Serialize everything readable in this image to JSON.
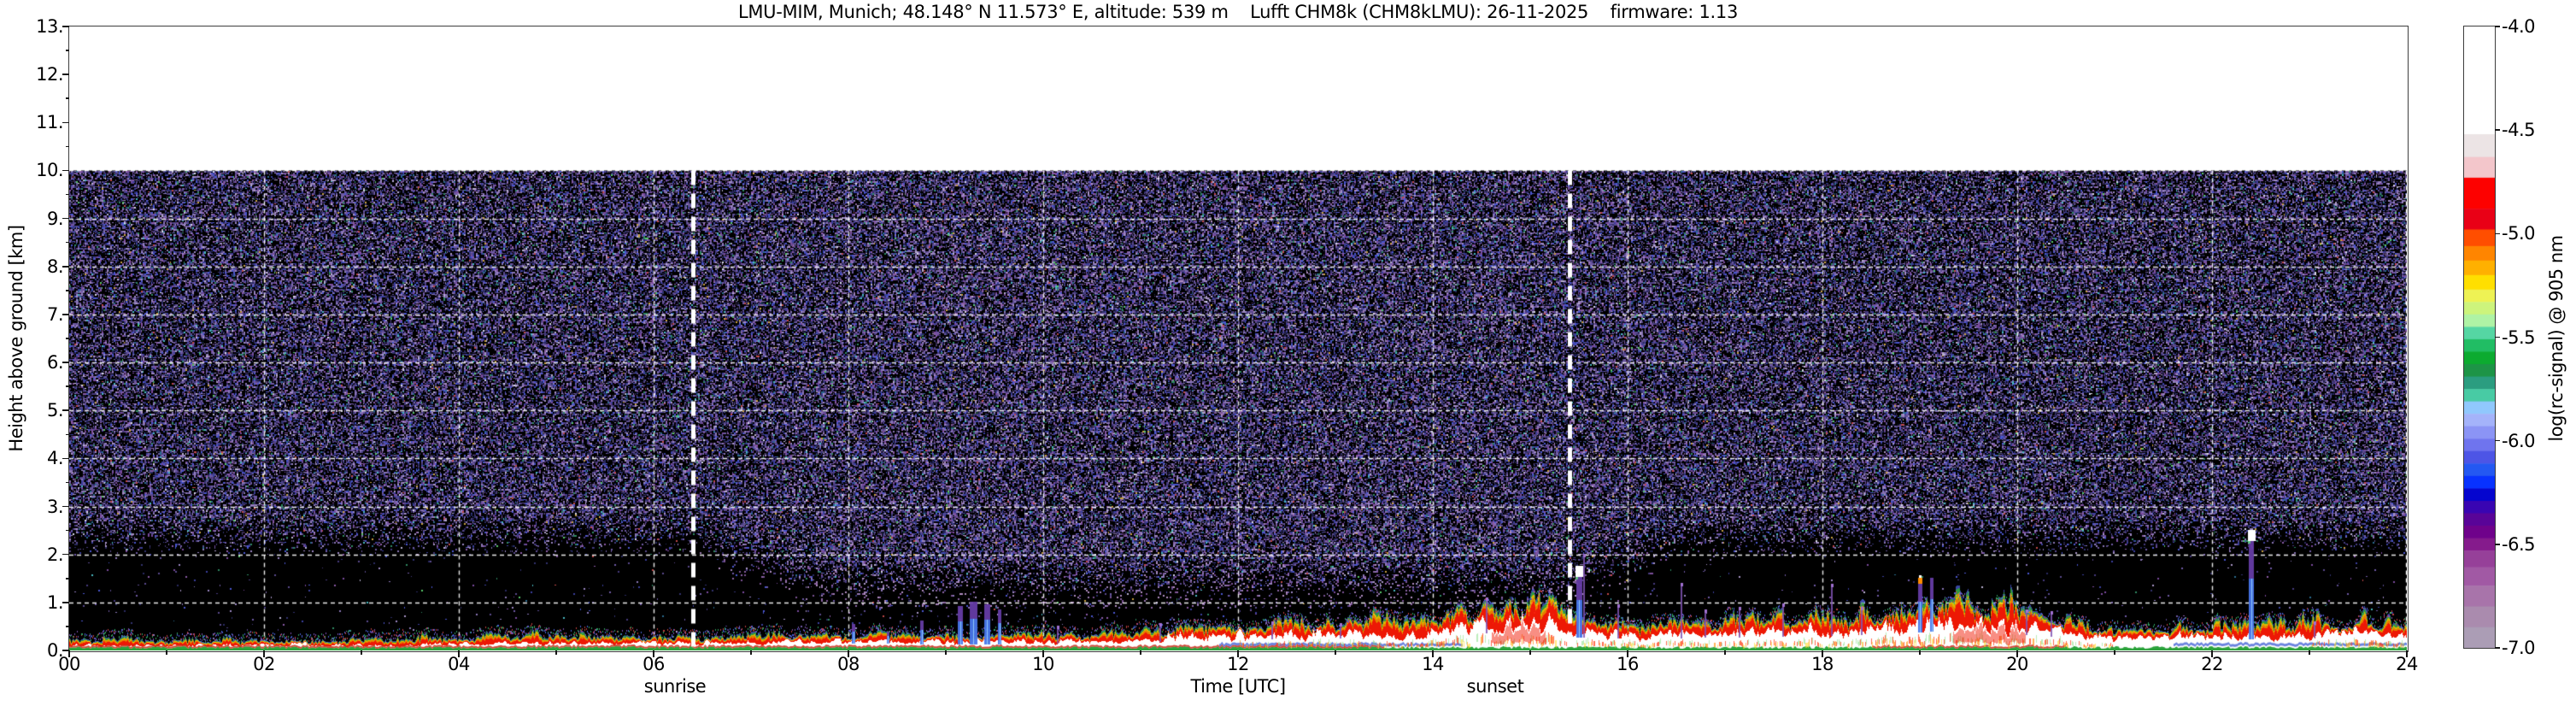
{
  "title": "LMU-MIM, Munich; 48.148° N 11.573° E, altitude: 539 m    Lufft CHM8k (CHM8kLMU): 26-11-2025    firmware: 1.13",
  "axes": {
    "xlabel": "Time [UTC]",
    "ylabel": "Height above ground [km]"
  },
  "annotations": {
    "sunrise": "sunrise",
    "sunset": "sunset"
  },
  "chart_data": {
    "type": "heatmap",
    "title": "LMU-MIM, Munich; 48.148° N 11.573° E, altitude: 539 m    Lufft CHM8k (CHM8kLMU): 26-11-2025    firmware: 1.13",
    "x": {
      "label": "Time [UTC]",
      "min": 0,
      "max": 24,
      "tick_hours": [
        0,
        2,
        4,
        6,
        8,
        10,
        12,
        14,
        16,
        18,
        20,
        22,
        24
      ],
      "tick_labels": [
        "00",
        "02",
        "04",
        "06",
        "08",
        "10",
        "12",
        "14",
        "16",
        "18",
        "20",
        "22",
        "24"
      ],
      "minor_tick_hours": [
        1,
        3,
        5,
        7,
        9,
        11,
        13,
        15,
        17,
        19,
        21,
        23
      ]
    },
    "y": {
      "label": "Height above ground [km]",
      "min": 0,
      "max": 13,
      "data_top_km": 10,
      "tick_km": [
        0,
        1,
        2,
        3,
        4,
        5,
        6,
        7,
        8,
        9,
        10,
        11,
        12,
        13
      ],
      "tick_labels": [
        "0.",
        "1.",
        "2.",
        "3.",
        "4.",
        "5.",
        "6.",
        "7.",
        "8.",
        "9.",
        "10.",
        "11.",
        "12.",
        "13."
      ]
    },
    "colorbar": {
      "label": "log(rc-signal) @ 905 nm",
      "min": -7.0,
      "max": -4.0,
      "tick_values": [
        -4.0,
        -4.5,
        -5.0,
        -5.5,
        -6.0,
        -6.5,
        -7.0
      ],
      "tick_labels": [
        "-4.0",
        "-4.5",
        "-5.0",
        "-5.5",
        "-6.0",
        "-6.5",
        "-7.0"
      ],
      "segments": [
        [
          -4.0,
          -4.52,
          "#ffffff"
        ],
        [
          -4.52,
          -4.63,
          "#ece4e5"
        ],
        [
          -4.63,
          -4.73,
          "#f3c6cb"
        ],
        [
          -4.73,
          -4.88,
          "#fd0100"
        ],
        [
          -4.88,
          -4.98,
          "#e90016"
        ],
        [
          -4.98,
          -5.06,
          "#ff4e00"
        ],
        [
          -5.06,
          -5.13,
          "#ff8500"
        ],
        [
          -5.13,
          -5.2,
          "#ffb000"
        ],
        [
          -5.2,
          -5.27,
          "#ffdf00"
        ],
        [
          -5.27,
          -5.33,
          "#eef254"
        ],
        [
          -5.33,
          -5.39,
          "#cdf47c"
        ],
        [
          -5.39,
          -5.45,
          "#aff3a5"
        ],
        [
          -5.45,
          -5.51,
          "#55d6a3"
        ],
        [
          -5.51,
          -5.57,
          "#21bd64"
        ],
        [
          -5.57,
          -5.63,
          "#0cab30"
        ],
        [
          -5.63,
          -5.69,
          "#1d9447"
        ],
        [
          -5.69,
          -5.75,
          "#2b9d80"
        ],
        [
          -5.75,
          -5.81,
          "#48cba4"
        ],
        [
          -5.81,
          -5.87,
          "#90c8fd"
        ],
        [
          -5.87,
          -5.93,
          "#a4b3fa"
        ],
        [
          -5.93,
          -5.99,
          "#8b94f5"
        ],
        [
          -5.99,
          -6.05,
          "#6f74ee"
        ],
        [
          -6.05,
          -6.11,
          "#4d55e6"
        ],
        [
          -6.11,
          -6.17,
          "#2458f2"
        ],
        [
          -6.17,
          -6.23,
          "#0832ff"
        ],
        [
          -6.23,
          -6.29,
          "#0505cf"
        ],
        [
          -6.29,
          -6.35,
          "#3905b2"
        ],
        [
          -6.35,
          -6.41,
          "#590498"
        ],
        [
          -6.41,
          -6.47,
          "#6f028b"
        ],
        [
          -6.47,
          -6.53,
          "#851b8c"
        ],
        [
          -6.53,
          -6.61,
          "#964099"
        ],
        [
          -6.61,
          -6.7,
          "#a159a4"
        ],
        [
          -6.7,
          -6.8,
          "#a874aa"
        ],
        [
          -6.8,
          -6.9,
          "#aa8bae"
        ],
        [
          -6.9,
          -7.0,
          "#ab9db5"
        ]
      ]
    },
    "sun": {
      "sunrise_utc": 6.4,
      "sunset_utc": 15.4,
      "sunrise_label": "sunrise",
      "sunset_label": "sunset"
    },
    "grid": {
      "horizontal_km": [
        1,
        2,
        3,
        4,
        5,
        6,
        7,
        8,
        9,
        10
      ],
      "vertical_hours": [
        2,
        4,
        6,
        8,
        10,
        12,
        14,
        16,
        18,
        20,
        22,
        24
      ],
      "color": "#ffffff",
      "style": "dashed"
    },
    "noise": {
      "density_max": 0.66,
      "night_cut_km": 1.95,
      "day_cut_km": 1.1,
      "palette": [
        [
          "#5a4a8e",
          0.13
        ],
        [
          "#6e5aa4",
          0.11
        ],
        [
          "#463a7e",
          0.1
        ],
        [
          "#8a76b6",
          0.09
        ],
        [
          "#3a3f9e",
          0.08
        ],
        [
          "#2a2a60",
          0.08
        ],
        [
          "#4a56d0",
          0.07
        ],
        [
          "#7a4a9e",
          0.07
        ],
        [
          "#9a86c2",
          0.06
        ],
        [
          "#32326e",
          0.05
        ],
        [
          "#8a5aa6",
          0.04
        ],
        [
          "#a995c6",
          0.03
        ],
        [
          "#2a6a8e",
          0.02
        ],
        [
          "#2f8a62",
          0.02
        ],
        [
          "#b8b0d0",
          0.015
        ],
        [
          "#48b8c0",
          0.01
        ],
        [
          "#c04848",
          0.006
        ],
        [
          "#c8a040",
          0.006
        ],
        [
          "#58c868",
          0.005
        ],
        [
          "#d8d8e8",
          0.005
        ]
      ],
      "day_palette": [
        "#9a7ab0",
        "#8a62a2",
        "#b08cc0",
        "#7a5292"
      ]
    },
    "boundary_layer": {
      "comment_fields": [
        "hour_utc",
        "white_core_top_km",
        "fringe_top_km",
        "redness_0_1"
      ],
      "points": [
        [
          0,
          0.1,
          0.24,
          0.3
        ],
        [
          1,
          0.1,
          0.22,
          0.3
        ],
        [
          2,
          0.11,
          0.24,
          0.3
        ],
        [
          3,
          0.11,
          0.24,
          0.3
        ],
        [
          4,
          0.13,
          0.28,
          0.32
        ],
        [
          5,
          0.16,
          0.34,
          0.32
        ],
        [
          6,
          0.15,
          0.3,
          0.3
        ],
        [
          6.8,
          0.16,
          0.3,
          0.3
        ],
        [
          7.6,
          0.17,
          0.32,
          0.35
        ],
        [
          8.3,
          0.19,
          0.36,
          0.4
        ],
        [
          9,
          0.17,
          0.32,
          0.35
        ],
        [
          9.8,
          0.17,
          0.32,
          0.35
        ],
        [
          10.6,
          0.2,
          0.36,
          0.4
        ],
        [
          11.3,
          0.26,
          0.44,
          0.45
        ],
        [
          12,
          0.3,
          0.5,
          0.5
        ],
        [
          12.7,
          0.32,
          0.52,
          0.55
        ],
        [
          13.3,
          0.38,
          0.62,
          0.75
        ],
        [
          13.9,
          0.28,
          0.52,
          0.6
        ],
        [
          14.3,
          0.44,
          0.7,
          0.85
        ],
        [
          14.8,
          0.56,
          0.88,
          0.9
        ],
        [
          15.15,
          0.6,
          0.95,
          0.88
        ],
        [
          15.5,
          0.38,
          0.68,
          0.8
        ],
        [
          16,
          0.33,
          0.58,
          0.7
        ],
        [
          16.6,
          0.35,
          0.6,
          0.62
        ],
        [
          17.3,
          0.38,
          0.64,
          0.62
        ],
        [
          18,
          0.42,
          0.68,
          0.65
        ],
        [
          18.6,
          0.46,
          0.74,
          0.7
        ],
        [
          19.1,
          0.55,
          0.88,
          0.75
        ],
        [
          19.55,
          0.56,
          0.95,
          1.0
        ],
        [
          19.9,
          0.5,
          0.88,
          1.0
        ],
        [
          20.2,
          0.42,
          0.72,
          0.8
        ],
        [
          20.7,
          0.3,
          0.52,
          0.55
        ],
        [
          21.3,
          0.27,
          0.46,
          0.45
        ],
        [
          22,
          0.29,
          0.48,
          0.42
        ],
        [
          22.7,
          0.33,
          0.55,
          0.48
        ],
        [
          23.3,
          0.38,
          0.62,
          0.52
        ],
        [
          24,
          0.35,
          0.58,
          0.5
        ]
      ]
    },
    "spikes": [
      [
        8.05,
        0.55,
        4,
        "b"
      ],
      [
        8.4,
        0.38,
        3,
        "b"
      ],
      [
        8.75,
        0.62,
        4,
        "b"
      ],
      [
        9.15,
        0.92,
        6,
        "b"
      ],
      [
        9.28,
        1.0,
        9,
        "b"
      ],
      [
        9.42,
        0.95,
        7,
        "b"
      ],
      [
        9.55,
        0.85,
        4,
        "b"
      ],
      [
        10.15,
        0.45,
        2,
        "p"
      ],
      [
        11.2,
        0.5,
        2,
        "p"
      ],
      [
        12.35,
        0.55,
        2,
        "p"
      ],
      [
        13.05,
        0.5,
        2,
        "p"
      ],
      [
        14.55,
        1.05,
        2,
        "p"
      ],
      [
        15.5,
        1.55,
        7,
        "bw"
      ],
      [
        15.55,
        1.95,
        2,
        "p"
      ],
      [
        15.9,
        0.9,
        2,
        "p"
      ],
      [
        16.55,
        1.35,
        2,
        "p"
      ],
      [
        16.8,
        0.8,
        2,
        "p"
      ],
      [
        17.15,
        0.85,
        2,
        "p"
      ],
      [
        17.6,
        0.92,
        2,
        "p"
      ],
      [
        18.1,
        1.32,
        2,
        "p"
      ],
      [
        18.4,
        0.85,
        2,
        "p"
      ],
      [
        19.0,
        1.42,
        5,
        "o"
      ],
      [
        19.12,
        1.5,
        4,
        "b"
      ],
      [
        20.1,
        0.8,
        2,
        "p"
      ],
      [
        20.35,
        0.75,
        2,
        "p"
      ],
      [
        22.4,
        2.3,
        6,
        "bw"
      ],
      [
        23.05,
        0.55,
        2,
        "p"
      ]
    ]
  }
}
